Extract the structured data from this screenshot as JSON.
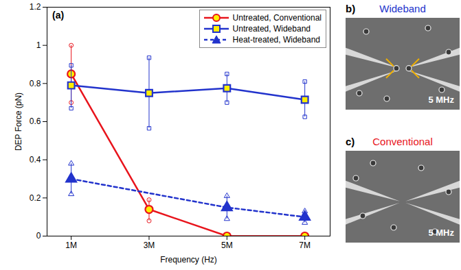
{
  "chart_data": {
    "type": "line",
    "panel_label": "(a)",
    "xlabel": "Frequency (Hz)",
    "ylabel": "DEP Force (pN)",
    "xlim": [
      380000,
      7650000
    ],
    "xticks": [
      {
        "value": 1000000,
        "label": "1M"
      },
      {
        "value": 3000000,
        "label": "3M"
      },
      {
        "value": 5000000,
        "label": "5M"
      },
      {
        "value": 7000000,
        "label": "7M"
      }
    ],
    "ylim": [
      0,
      1.2
    ],
    "yticks": [
      0,
      0.2,
      0.4,
      0.6,
      0.8,
      1,
      1.2
    ],
    "legend": "upper right",
    "series": [
      {
        "name": "Untreated, Conventional",
        "color": "#e8141c",
        "marker": "circle",
        "line_style": "solid",
        "x": [
          1000000,
          3000000,
          5000000,
          7000000
        ],
        "values": [
          0.85,
          0.14,
          0,
          0
        ],
        "error_low": [
          0.7,
          0.08,
          0,
          0
        ],
        "error_high": [
          1.0,
          0.19,
          0,
          0
        ]
      },
      {
        "name": "Untreated, Wideband",
        "color": "#2233cc",
        "marker": "square",
        "line_style": "solid",
        "x": [
          1000000,
          3000000,
          5000000,
          7000000
        ],
        "values": [
          0.79,
          0.75,
          0.775,
          0.715
        ],
        "error_low": [
          0.67,
          0.565,
          0.7,
          0.625
        ],
        "error_high": [
          0.895,
          0.935,
          0.85,
          0.81
        ]
      },
      {
        "name": "Heat-treated, Wideband",
        "color": "#2233cc",
        "marker": "triangle",
        "line_style": "dashed",
        "x": [
          1000000,
          5000000,
          7000000
        ],
        "values": [
          0.3,
          0.15,
          0.1
        ],
        "error_low": [
          0.22,
          0.09,
          0.07
        ],
        "error_high": [
          0.38,
          0.21,
          0.13
        ]
      }
    ]
  },
  "images": [
    {
      "label": "b)",
      "title": "Wideband",
      "color": "#2233cc",
      "annotation": "5 MHz"
    },
    {
      "label": "c)",
      "title": "Conventional",
      "color": "#e8141c",
      "annotation": "5 MHz"
    }
  ]
}
